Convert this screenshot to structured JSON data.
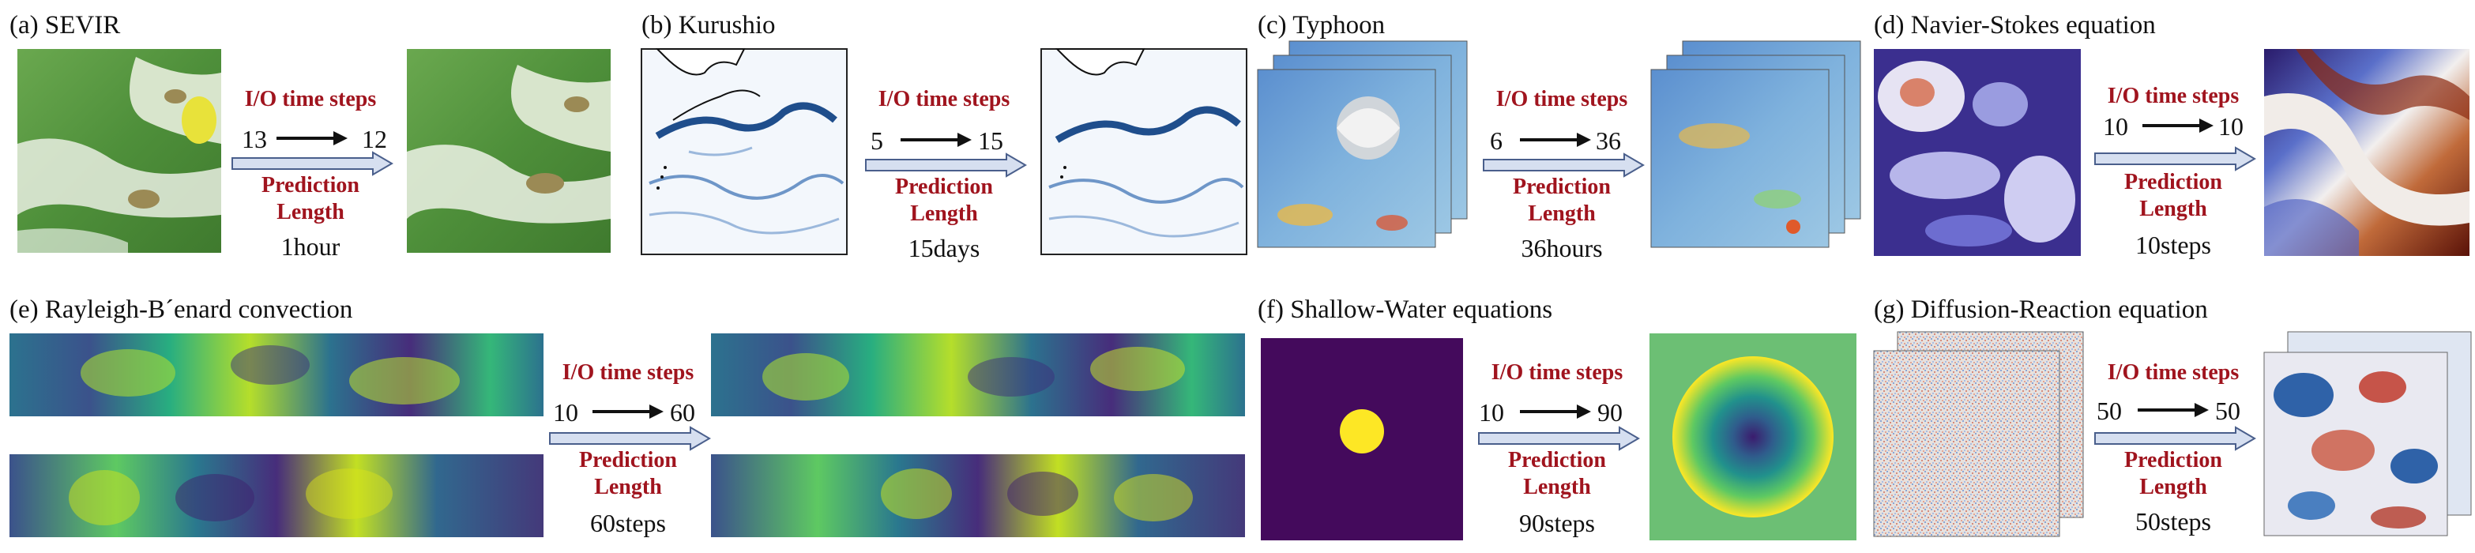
{
  "io_label": "I/O time steps",
  "prediction_label": [
    "Prediction",
    "Length"
  ],
  "panels": {
    "a": {
      "title": "(a) SEVIR",
      "input": "13",
      "output": "12",
      "length": "1hour"
    },
    "b": {
      "title": "(b) Kurushio",
      "input": "5",
      "output": "15",
      "length": "15days"
    },
    "c": {
      "title": "(c) Typhoon",
      "input": "6",
      "output": "36",
      "length": "36hours"
    },
    "d": {
      "title": "(d) Navier-Stokes equation",
      "input": "10",
      "output": "10",
      "length": "10steps"
    },
    "e": {
      "title": "(e) Rayleigh-B´enard convection",
      "input": "10",
      "output": "60",
      "length": "60steps"
    },
    "f": {
      "title": "(f) Shallow-Water equations",
      "input": "10",
      "output": "90",
      "length": "90steps"
    },
    "g": {
      "title": "(g) Diffusion-Reaction equation",
      "input": "50",
      "output": "50",
      "length": "50steps"
    }
  },
  "colors": {
    "label_red": "#a0141e",
    "arrow_fill": "#d6dff0",
    "arrow_stroke": "#4a5f8c"
  }
}
